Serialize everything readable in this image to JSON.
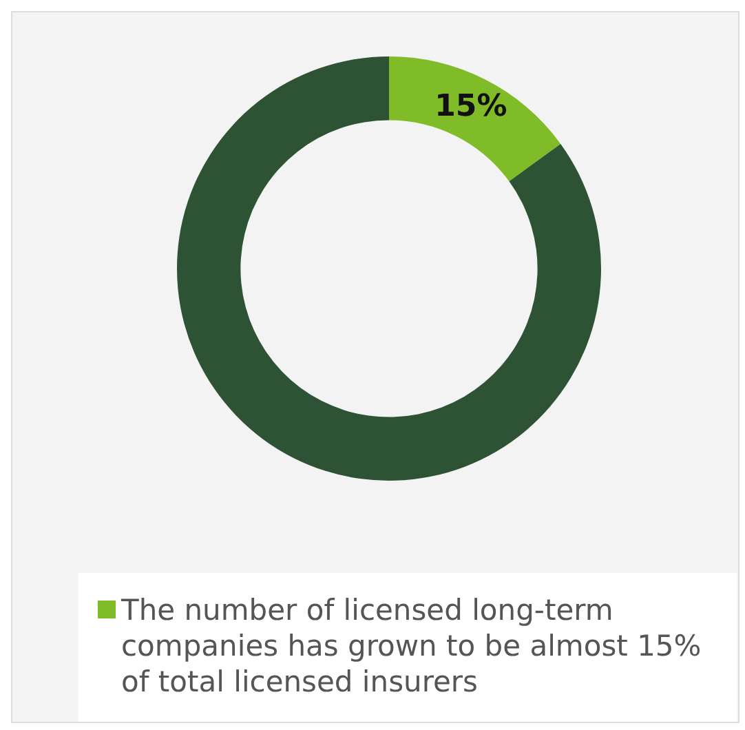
{
  "chart_data": {
    "type": "donut",
    "categories": [
      "The number of licensed long-term companies has grown to be almost 15% of total licensed insurers",
      null
    ],
    "values": [
      15,
      85
    ],
    "colors": [
      "#80bc28",
      "#2d5234"
    ],
    "value_labels": [
      "15%",
      null
    ],
    "legend": "bottom"
  }
}
